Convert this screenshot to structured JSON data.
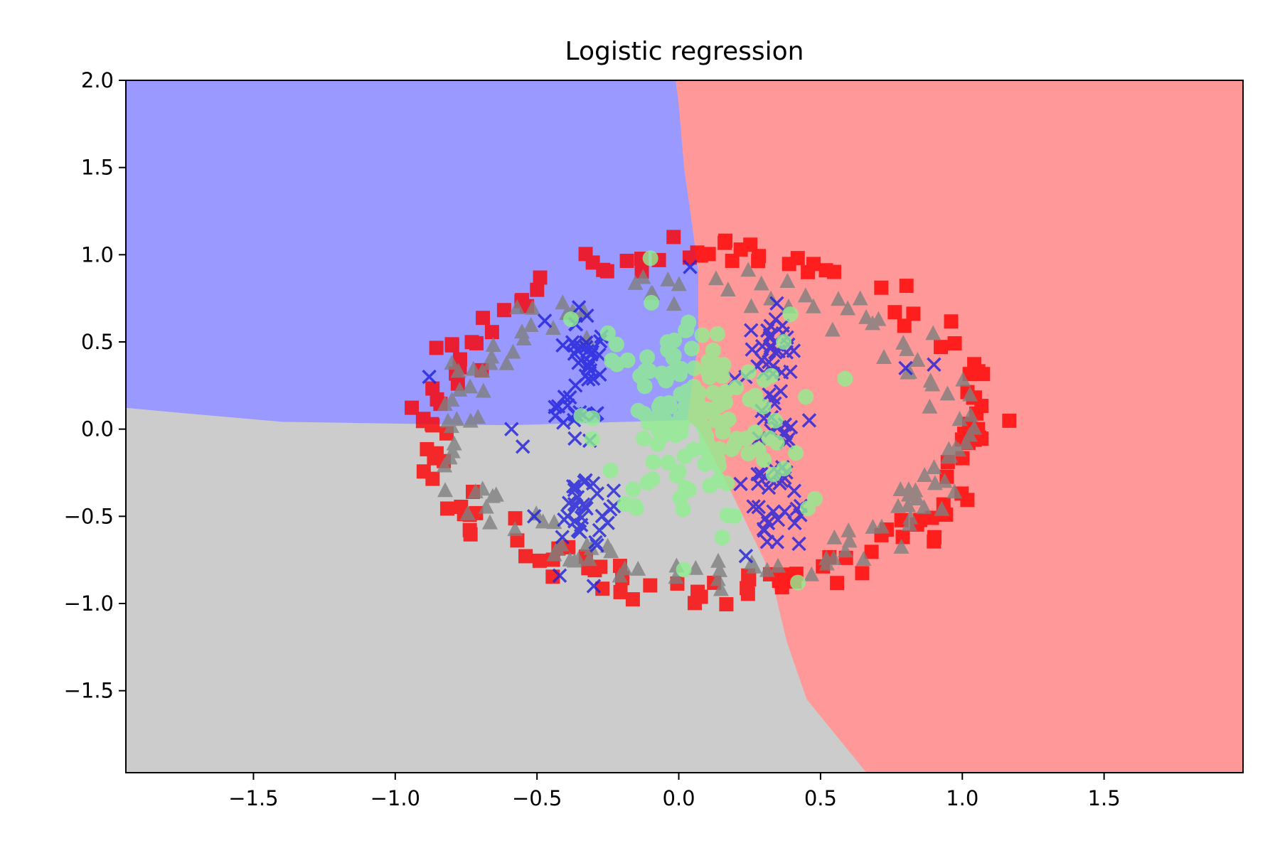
{
  "chart_data": {
    "type": "scatter",
    "title": "Logistic regression",
    "xlabel": "",
    "ylabel": "",
    "xlim": [
      -1.95,
      1.99
    ],
    "ylim": [
      -1.97,
      2.0
    ],
    "x_ticks": [
      -1.5,
      -1.0,
      -0.5,
      0.0,
      0.5,
      1.0,
      1.5
    ],
    "y_ticks": [
      2.0,
      1.5,
      1.0,
      0.5,
      0.0,
      -0.5,
      -1.0,
      -1.5
    ],
    "x_tick_labels": [
      "−1.5",
      "−1.0",
      "−0.5",
      "0.0",
      "0.5",
      "1.0",
      "1.5"
    ],
    "y_tick_labels": [
      "2.0",
      "1.5",
      "1.0",
      "0.5",
      "0.0",
      "−0.5",
      "−1.0",
      "−1.5"
    ],
    "grid": false,
    "decision_regions": [
      {
        "color": "#9999ff",
        "polygon": [
          [
            -1.95,
            2.0
          ],
          [
            -0.01,
            2.0
          ],
          [
            0.0,
            1.88
          ],
          [
            0.02,
            1.5
          ],
          [
            0.05,
            1.15
          ],
          [
            0.07,
            0.9
          ],
          [
            0.07,
            0.5
          ],
          [
            0.03,
            0.05
          ],
          [
            -0.6,
            0.02
          ],
          [
            -1.4,
            0.04
          ],
          [
            -1.75,
            0.09
          ],
          [
            -1.95,
            0.12
          ]
        ]
      },
      {
        "color": "#ff9999",
        "polygon": [
          [
            -0.01,
            2.0
          ],
          [
            1.99,
            2.0
          ],
          [
            1.99,
            -1.97
          ],
          [
            0.66,
            -1.97
          ],
          [
            0.55,
            -1.75
          ],
          [
            0.45,
            -1.55
          ],
          [
            0.38,
            -1.22
          ],
          [
            0.34,
            -0.95
          ],
          [
            0.3,
            -0.75
          ],
          [
            0.18,
            -0.35
          ],
          [
            0.07,
            0.0
          ],
          [
            0.03,
            0.05
          ],
          [
            0.07,
            0.5
          ],
          [
            0.07,
            0.9
          ],
          [
            0.05,
            1.15
          ],
          [
            0.02,
            1.5
          ],
          [
            0.0,
            1.88
          ]
        ]
      },
      {
        "color": "#cccccc",
        "polygon": [
          [
            -1.95,
            0.12
          ],
          [
            -1.75,
            0.09
          ],
          [
            -1.4,
            0.04
          ],
          [
            -0.6,
            0.02
          ],
          [
            0.03,
            0.05
          ],
          [
            0.07,
            0.0
          ],
          [
            0.18,
            -0.35
          ],
          [
            0.3,
            -0.75
          ],
          [
            0.34,
            -0.95
          ],
          [
            0.38,
            -1.22
          ],
          [
            0.45,
            -1.55
          ],
          [
            0.55,
            -1.75
          ],
          [
            0.66,
            -1.97
          ],
          [
            -1.95,
            -1.97
          ]
        ]
      }
    ],
    "series": [
      {
        "marker": "square",
        "color": "#ff0000",
        "generator": {
          "shape": "ring",
          "cx": 0.1,
          "cy": 0.05,
          "rx": 0.96,
          "ry": 0.97,
          "jitter": 0.05,
          "count": 150
        }
      },
      {
        "marker": "triangle",
        "color": "#808080",
        "generator": {
          "shape": "ring",
          "cx": 0.1,
          "cy": 0.0,
          "rx": 0.88,
          "ry": 0.82,
          "jitter": 0.05,
          "count": 150
        }
      },
      {
        "marker": "x",
        "color": "#2020dd",
        "generator": {
          "shape": "blobs",
          "jitter": 0.05,
          "count": 150,
          "centers": [
            [
              -0.33,
              0.55
            ],
            [
              0.33,
              0.55
            ],
            [
              -0.32,
              0.33
            ],
            [
              0.33,
              0.35
            ],
            [
              -0.36,
              0.05
            ],
            [
              0.33,
              0.05
            ],
            [
              -0.35,
              -0.4
            ],
            [
              0.33,
              -0.3
            ],
            [
              -0.3,
              -0.55
            ],
            [
              0.35,
              -0.55
            ]
          ],
          "extras": [
            [
              0.04,
              0.93
            ],
            [
              0.9,
              0.37
            ],
            [
              -0.88,
              0.3
            ],
            [
              -0.59,
              0.0
            ],
            [
              -0.51,
              -0.5
            ],
            [
              -0.42,
              -0.84
            ],
            [
              -0.3,
              -0.9
            ],
            [
              0.46,
              0.05
            ],
            [
              0.8,
              0.35
            ],
            [
              -0.55,
              -0.1
            ]
          ]
        }
      },
      {
        "marker": "circle",
        "color": "#90ee90",
        "generator": {
          "shape": "blob",
          "cx": 0.05,
          "cy": 0.05,
          "sx": 0.17,
          "sy": 0.3,
          "count": 150,
          "extras": [
            [
              -0.1,
              0.98
            ],
            [
              0.42,
              -0.88
            ],
            [
              -0.38,
              0.63
            ],
            [
              0.37,
              0.5
            ],
            [
              0.48,
              -0.4
            ],
            [
              -0.25,
              0.55
            ]
          ]
        }
      }
    ]
  }
}
